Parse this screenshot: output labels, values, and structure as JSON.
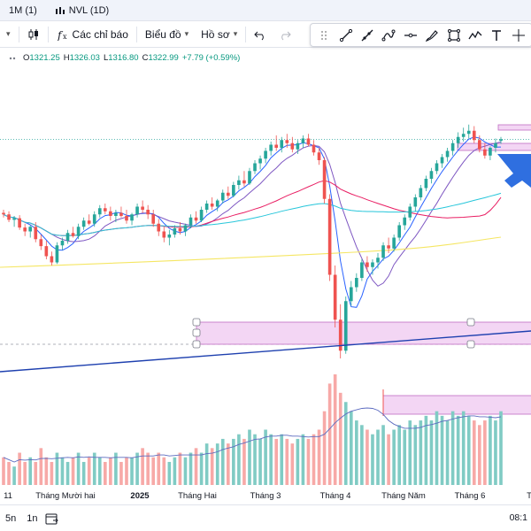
{
  "tabs": [
    {
      "label": "1M (1)"
    },
    {
      "label": "NVL (1D)"
    }
  ],
  "toolbar": {
    "indicators_label": "Các chỉ báo",
    "chart_type_label": "Biểu đồ",
    "profile_label": "Hồ sơ"
  },
  "legend": {
    "open_label": "O",
    "open": "1321.25",
    "high_label": "H",
    "high": "1326.03",
    "low_label": "L",
    "low": "1316.80",
    "close_label": "C",
    "close": "1322.99",
    "change": "+7.79 (+0.59%)"
  },
  "bottom": {
    "range_5y": "5n",
    "range_1y": "1n",
    "time": "08:1"
  },
  "colors": {
    "up": "#26a69a",
    "down": "#ef5350",
    "vol_up": "#80cbc4",
    "vol_down": "#f7a9a7",
    "ma_fast": "#2962ff",
    "ma_mid": "#7e57c2",
    "ma_slow": "#e91e63",
    "ma_teal": "#26c6da",
    "ma_yellow": "#f5e663",
    "trend": "#1e40af",
    "zone_fill": "#f3d6f4",
    "zone_border": "#c06cc4",
    "arrow": "#2f6fe0"
  },
  "chart_data": {
    "type": "candlestick",
    "x_tick_labels": [
      "11",
      "Tháng Mười hai",
      "2025",
      "Tháng Hai",
      "Tháng 3",
      "Tháng 4",
      "Tháng Năm",
      "Tháng 6",
      "T"
    ],
    "y_range": [
      1000,
      1400
    ],
    "candles": [
      [
        1228,
        1232,
        1222,
        1226
      ],
      [
        1226,
        1230,
        1216,
        1219
      ],
      [
        1219,
        1224,
        1210,
        1221
      ],
      [
        1221,
        1225,
        1206,
        1209
      ],
      [
        1209,
        1214,
        1198,
        1204
      ],
      [
        1204,
        1212,
        1196,
        1210
      ],
      [
        1210,
        1216,
        1190,
        1194
      ],
      [
        1194,
        1200,
        1180,
        1185
      ],
      [
        1185,
        1192,
        1168,
        1172
      ],
      [
        1172,
        1178,
        1160,
        1164
      ],
      [
        1164,
        1190,
        1162,
        1186
      ],
      [
        1186,
        1196,
        1180,
        1192
      ],
      [
        1192,
        1206,
        1188,
        1202
      ],
      [
        1202,
        1210,
        1196,
        1198
      ],
      [
        1198,
        1214,
        1194,
        1210
      ],
      [
        1210,
        1222,
        1206,
        1218
      ],
      [
        1218,
        1226,
        1212,
        1214
      ],
      [
        1214,
        1230,
        1210,
        1226
      ],
      [
        1226,
        1238,
        1222,
        1234
      ],
      [
        1234,
        1240,
        1226,
        1230
      ],
      [
        1230,
        1236,
        1218,
        1224
      ],
      [
        1224,
        1232,
        1216,
        1228
      ],
      [
        1228,
        1236,
        1222,
        1224
      ],
      [
        1224,
        1232,
        1214,
        1218
      ],
      [
        1218,
        1228,
        1212,
        1226
      ],
      [
        1226,
        1240,
        1222,
        1236
      ],
      [
        1236,
        1244,
        1228,
        1232
      ],
      [
        1232,
        1238,
        1220,
        1226
      ],
      [
        1226,
        1232,
        1210,
        1214
      ],
      [
        1214,
        1220,
        1198,
        1204
      ],
      [
        1204,
        1210,
        1190,
        1196
      ],
      [
        1196,
        1206,
        1186,
        1200
      ],
      [
        1200,
        1212,
        1196,
        1208
      ],
      [
        1208,
        1216,
        1200,
        1204
      ],
      [
        1204,
        1214,
        1198,
        1212
      ],
      [
        1212,
        1226,
        1208,
        1222
      ],
      [
        1222,
        1230,
        1214,
        1218
      ],
      [
        1218,
        1236,
        1216,
        1232
      ],
      [
        1232,
        1244,
        1228,
        1240
      ],
      [
        1240,
        1248,
        1232,
        1236
      ],
      [
        1236,
        1246,
        1230,
        1244
      ],
      [
        1244,
        1258,
        1240,
        1254
      ],
      [
        1254,
        1262,
        1246,
        1250
      ],
      [
        1250,
        1268,
        1248,
        1264
      ],
      [
        1264,
        1276,
        1258,
        1270
      ],
      [
        1270,
        1282,
        1262,
        1266
      ],
      [
        1266,
        1286,
        1264,
        1282
      ],
      [
        1282,
        1296,
        1278,
        1292
      ],
      [
        1292,
        1302,
        1284,
        1298
      ],
      [
        1298,
        1312,
        1292,
        1308
      ],
      [
        1308,
        1320,
        1302,
        1316
      ],
      [
        1316,
        1328,
        1308,
        1312
      ],
      [
        1312,
        1326,
        1306,
        1322
      ],
      [
        1322,
        1330,
        1312,
        1318
      ],
      [
        1318,
        1326,
        1306,
        1310
      ],
      [
        1310,
        1322,
        1304,
        1318
      ],
      [
        1318,
        1328,
        1312,
        1324
      ],
      [
        1324,
        1330,
        1314,
        1316
      ],
      [
        1316,
        1322,
        1302,
        1306
      ],
      [
        1306,
        1312,
        1290,
        1296
      ],
      [
        1296,
        1300,
        1240,
        1246
      ],
      [
        1246,
        1252,
        1140,
        1148
      ],
      [
        1148,
        1160,
        1080,
        1090
      ],
      [
        1090,
        1110,
        1040,
        1050
      ],
      [
        1050,
        1120,
        1046,
        1114
      ],
      [
        1114,
        1140,
        1108,
        1132
      ],
      [
        1132,
        1150,
        1126,
        1144
      ],
      [
        1144,
        1168,
        1140,
        1164
      ],
      [
        1164,
        1172,
        1152,
        1158
      ],
      [
        1158,
        1168,
        1148,
        1164
      ],
      [
        1164,
        1176,
        1156,
        1170
      ],
      [
        1170,
        1190,
        1166,
        1186
      ],
      [
        1186,
        1196,
        1176,
        1182
      ],
      [
        1182,
        1200,
        1178,
        1196
      ],
      [
        1196,
        1216,
        1192,
        1212
      ],
      [
        1212,
        1226,
        1206,
        1222
      ],
      [
        1222,
        1240,
        1218,
        1236
      ],
      [
        1236,
        1252,
        1230,
        1248
      ],
      [
        1248,
        1264,
        1244,
        1260
      ],
      [
        1260,
        1276,
        1256,
        1272
      ],
      [
        1272,
        1286,
        1266,
        1282
      ],
      [
        1282,
        1296,
        1278,
        1292
      ],
      [
        1292,
        1304,
        1286,
        1300
      ],
      [
        1300,
        1312,
        1294,
        1308
      ],
      [
        1308,
        1322,
        1302,
        1318
      ],
      [
        1318,
        1332,
        1312,
        1326
      ],
      [
        1326,
        1338,
        1320,
        1330
      ],
      [
        1330,
        1342,
        1324,
        1334
      ],
      [
        1334,
        1340,
        1318,
        1322
      ],
      [
        1322,
        1328,
        1306,
        1310
      ],
      [
        1310,
        1318,
        1298,
        1302
      ],
      [
        1302,
        1314,
        1296,
        1312
      ],
      [
        1312,
        1324,
        1306,
        1318
      ],
      [
        1321,
        1326,
        1317,
        1323
      ]
    ],
    "volume": [
      6,
      5,
      4,
      7,
      5,
      6,
      5,
      8,
      6,
      5,
      7,
      6,
      5,
      6,
      7,
      5,
      6,
      7,
      6,
      5,
      6,
      7,
      5,
      6,
      6,
      7,
      8,
      7,
      6,
      7,
      6,
      5,
      6,
      7,
      6,
      7,
      8,
      7,
      9,
      8,
      9,
      10,
      9,
      10,
      11,
      10,
      12,
      11,
      10,
      12,
      11,
      10,
      11,
      10,
      9,
      10,
      11,
      10,
      11,
      12,
      16,
      22,
      24,
      20,
      18,
      16,
      14,
      13,
      12,
      11,
      12,
      13,
      11,
      12,
      13,
      12,
      14,
      13,
      14,
      15,
      14,
      16,
      15,
      14,
      16,
      15,
      16,
      15,
      14,
      13,
      14,
      15,
      14,
      16
    ],
    "ma_series_count": 6
  }
}
